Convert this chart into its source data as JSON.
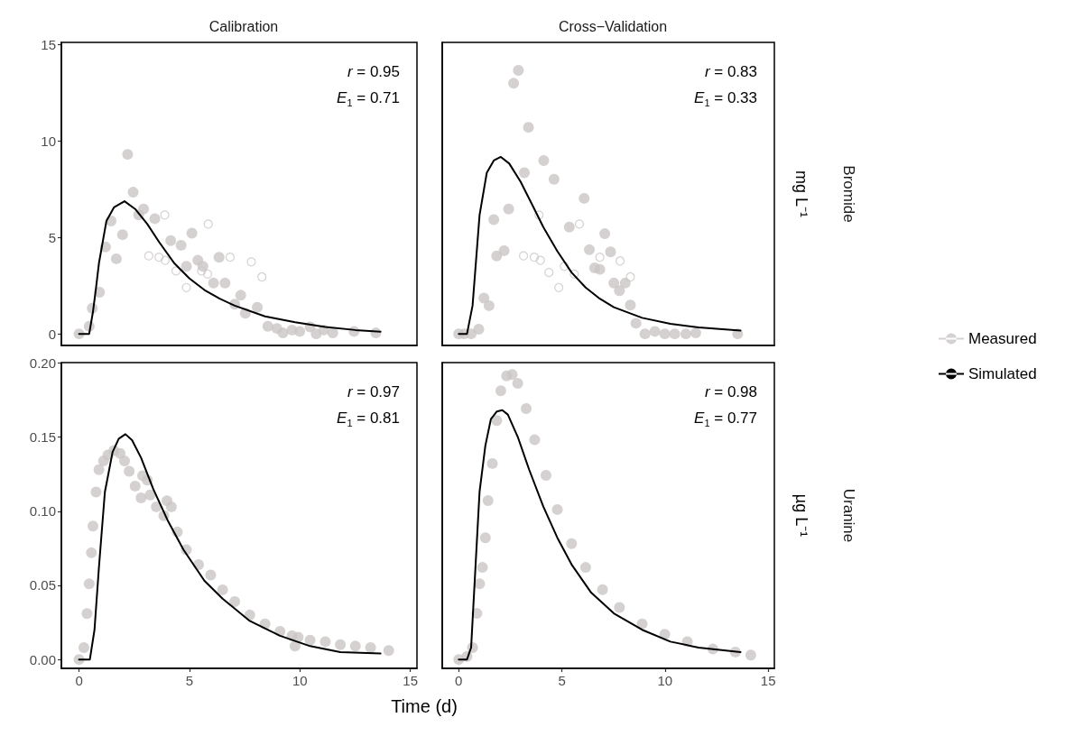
{
  "chart_data": [
    {
      "type": "scatter",
      "title": "Calibration",
      "xlim": [
        -0.8,
        15.3
      ],
      "ylim": [
        -0.6,
        15.1
      ],
      "xticks": [
        0,
        5,
        10,
        15
      ],
      "yticks": [
        0,
        5,
        10,
        15
      ],
      "tick_labels": "y",
      "grid": false,
      "legend": false,
      "line_style": "solid",
      "annotations": [
        "r = 0.95",
        "E$_{1}$ = 0.71"
      ],
      "series": [
        {
          "marker": "circle",
          "color": "#cbc6c5",
          "x": [
            0,
            0.46,
            0.6,
            0.93,
            1.2,
            1.45,
            1.69,
            1.97,
            2.2,
            2.45,
            2.7,
            2.92,
            3.43,
            4.15,
            4.62,
            4.86,
            5.11,
            5.38,
            5.61,
            6.09,
            6.34,
            6.61,
            7.05,
            7.32,
            7.53,
            8.07,
            8.55,
            8.96,
            9.23,
            9.64,
            9.99,
            10.46,
            10.74,
            11.08,
            11.49,
            12.45,
            13.44
          ],
          "values": [
            0,
            0.39,
            1.33,
            2.16,
            4.5,
            5.85,
            3.89,
            5.14,
            9.3,
            7.34,
            6.16,
            6.47,
            5.97,
            4.83,
            4.59,
            3.5,
            5.22,
            3.81,
            3.5,
            2.63,
            3.97,
            2.63,
            1.54,
            2.0,
            1.07,
            1.38,
            0.39,
            0.28,
            0.05,
            0.2,
            0.13,
            0.36,
            0,
            0.2,
            0.05,
            0.13,
            0.05
          ]
        },
        {
          "type": "scatter",
          "marker": "circle",
          "color": "#cbc6c5",
          "x": [
            3.16,
            3.62,
            3.88,
            3.9,
            4.39,
            4.86,
            5.55,
            5.82,
            5.85,
            6.84,
            7.8,
            8.28
          ],
          "values": [
            4.04,
            3.97,
            6.16,
            3.81,
            3.26,
            2.4,
            3.26,
            3.1,
            5.69,
            3.97,
            3.73,
            2.95
          ]
        },
        {
          "type": "line",
          "marker": "none",
          "color": "#000000",
          "x": [
            0,
            0.46,
            0.63,
            0.77,
            0.9,
            1.24,
            1.58,
            2.06,
            2.54,
            3.09,
            3.63,
            4.32,
            5.0,
            5.68,
            6.37,
            7.05,
            8.42,
            9.78,
            11.15,
            12.51,
            13.65
          ],
          "values": [
            0,
            0,
            1.14,
            2.4,
            3.65,
            5.85,
            6.55,
            6.87,
            6.47,
            5.69,
            4.75,
            3.65,
            2.87,
            2.27,
            1.82,
            1.46,
            0.91,
            0.6,
            0.36,
            0.2,
            0.11
          ]
        }
      ]
    },
    {
      "type": "scatter",
      "title": "Cross−Validation",
      "ylabel": "mg L⁻¹",
      "y2label": "Bromide",
      "xlim": [
        -0.8,
        15.3
      ],
      "ylim": [
        -0.6,
        15.1
      ],
      "xticks": [
        0,
        5,
        10,
        15
      ],
      "yticks": [
        0,
        5,
        10,
        15
      ],
      "tick_labels": false,
      "grid": false,
      "legend": "right",
      "line_style": "solid",
      "annotations": [
        "r = 0.83",
        "E$_{1}$ = 0.33"
      ],
      "series": [
        {
          "name": "Measured",
          "marker": "circle",
          "color": "#cbc6c5",
          "x": [
            0,
            0.26,
            0.6,
            0.97,
            1.22,
            1.47,
            1.7,
            1.84,
            2.2,
            2.42,
            2.66,
            2.89,
            3.18,
            3.38,
            4.12,
            4.62,
            5.36,
            6.08,
            6.33,
            6.59,
            6.84,
            7.08,
            7.36,
            7.52,
            7.79,
            8.07,
            8.32,
            8.59,
            9.03,
            9.51,
            9.99,
            10.47,
            11.01,
            11.49,
            13.52
          ],
          "values": [
            0,
            0,
            0,
            0.24,
            1.85,
            1.46,
            5.92,
            4.04,
            4.31,
            6.47,
            12.98,
            13.65,
            8.35,
            10.7,
            8.98,
            8.01,
            5.53,
            7.02,
            4.36,
            3.42,
            3.34,
            5.19,
            4.25,
            2.63,
            2.24,
            2.63,
            1.49,
            0.55,
            0,
            0.13,
            0,
            0,
            0,
            0.05,
            0
          ]
        },
        {
          "type": "scatter",
          "marker": "circle",
          "color": "#cbc6c5",
          "x": [
            3.89,
            3.14,
            3.66,
            3.96,
            4.37,
            4.85,
            5.12,
            5.6,
            5.85,
            6.84,
            7.82,
            8.32
          ],
          "values": [
            6.16,
            4.04,
            3.97,
            3.81,
            3.18,
            2.4,
            3.5,
            3.1,
            5.69,
            3.97,
            3.78,
            2.95
          ]
        },
        {
          "name": "Simulated",
          "type": "line",
          "marker": "none",
          "color": "#000000",
          "x": [
            0,
            0.4,
            0.67,
            1.01,
            1.36,
            1.7,
            2.04,
            2.45,
            3.0,
            3.55,
            4.1,
            4.78,
            5.47,
            6.15,
            6.84,
            7.52,
            8.89,
            10.26,
            11.63,
            13.66
          ],
          "values": [
            0,
            0,
            1.46,
            6.16,
            8.35,
            8.98,
            9.17,
            8.82,
            7.88,
            6.71,
            5.53,
            4.28,
            3.18,
            2.4,
            1.82,
            1.38,
            0.83,
            0.52,
            0.33,
            0.17
          ]
        }
      ]
    },
    {
      "type": "scatter",
      "xlabel": "Time (d)",
      "xlim": [
        -0.8,
        15.3
      ],
      "ylim": [
        -0.006,
        0.2
      ],
      "xticks": [
        0,
        5,
        10,
        15
      ],
      "yticks": [
        {
          "value": 0,
          "label": "0.00"
        },
        0.05,
        {
          "value": 0.1,
          "label": "0.10"
        },
        0.15,
        {
          "value": 0.2,
          "label": "0.20"
        }
      ],
      "grid": false,
      "legend": false,
      "line_style": "solid",
      "annotations": [
        "r = 0.97",
        "E$_{1}$ = 0.81"
      ],
      "series": [
        {
          "marker": "circle",
          "color": "#cbc6c5",
          "x": [
            0,
            0.22,
            0.36,
            0.46,
            0.56,
            0.63,
            0.77,
            0.9,
            1.11,
            1.31,
            1.58,
            1.86,
            2.06,
            2.27,
            2.54,
            2.81,
            2.88,
            3.09,
            3.22,
            3.5,
            3.84,
            3.98,
            4.18,
            4.45,
            4.86,
            5.41,
            5.96,
            6.5,
            7.05,
            7.73,
            8.42,
            9.1,
            9.64,
            9.78,
            9.92,
            10.46,
            11.15,
            11.83,
            12.51,
            13.2,
            14.02
          ],
          "values": [
            0,
            0.008,
            0.031,
            0.051,
            0.072,
            0.09,
            0.113,
            0.128,
            0.134,
            0.138,
            0.141,
            0.139,
            0.134,
            0.127,
            0.117,
            0.109,
            0.124,
            0.121,
            0.111,
            0.103,
            0.097,
            0.107,
            0.103,
            0.086,
            0.074,
            0.064,
            0.057,
            0.047,
            0.039,
            0.03,
            0.024,
            0.019,
            0.016,
            0.009,
            0.015,
            0.013,
            0.012,
            0.01,
            0.009,
            0.008,
            0.006
          ]
        },
        {
          "type": "line",
          "marker": "none",
          "color": "#000000",
          "x": [
            0,
            0.49,
            0.7,
            0.9,
            1.17,
            1.52,
            1.8,
            2.1,
            2.4,
            2.81,
            3.36,
            4.04,
            4.73,
            5.68,
            6.5,
            7.73,
            9.1,
            10.46,
            11.83,
            13.65
          ],
          "values": [
            0,
            0,
            0.02,
            0.062,
            0.113,
            0.14,
            0.149,
            0.152,
            0.148,
            0.136,
            0.115,
            0.093,
            0.074,
            0.053,
            0.041,
            0.026,
            0.016,
            0.009,
            0.005,
            0.004
          ]
        }
      ]
    },
    {
      "type": "scatter",
      "ylabel": "µg L⁻¹",
      "y2label": "Uranine",
      "xlim": [
        -0.8,
        15.3
      ],
      "ylim": [
        -0.006,
        0.2
      ],
      "xticks": [
        0,
        5,
        10,
        15
      ],
      "yticks": [
        0,
        0.05,
        0.1,
        0.15,
        0.2
      ],
      "tick_labels": "x",
      "grid": false,
      "legend": false,
      "line_style": "solid",
      "annotations": [
        "r = 0.98",
        "E$_{1}$ = 0.77"
      ],
      "series": [
        {
          "marker": "circle",
          "color": "#cbc6c5",
          "x": [
            0,
            0.4,
            0.67,
            0.88,
            1.01,
            1.15,
            1.29,
            1.42,
            1.63,
            1.84,
            2.04,
            2.32,
            2.59,
            2.86,
            3.27,
            3.68,
            4.23,
            4.78,
            5.47,
            6.15,
            6.97,
            7.79,
            8.89,
            9.99,
            11.08,
            12.32,
            13.41,
            14.16
          ],
          "values": [
            0,
            0.002,
            0.008,
            0.031,
            0.051,
            0.062,
            0.082,
            0.107,
            0.132,
            0.161,
            0.181,
            0.191,
            0.192,
            0.186,
            0.169,
            0.148,
            0.124,
            0.101,
            0.078,
            0.062,
            0.047,
            0.035,
            0.024,
            0.017,
            0.012,
            0.007,
            0.005,
            0.003
          ]
        },
        {
          "type": "line",
          "marker": "none",
          "color": "#000000",
          "x": [
            0,
            0.4,
            0.6,
            0.81,
            1.01,
            1.29,
            1.56,
            1.84,
            2.11,
            2.38,
            2.86,
            3.41,
            4.1,
            4.78,
            5.47,
            6.42,
            7.52,
            8.89,
            10.26,
            11.63,
            13.66
          ],
          "values": [
            0,
            0,
            0.008,
            0.062,
            0.113,
            0.144,
            0.162,
            0.167,
            0.168,
            0.165,
            0.15,
            0.128,
            0.103,
            0.082,
            0.064,
            0.045,
            0.031,
            0.02,
            0.012,
            0.008,
            0.005
          ]
        }
      ]
    }
  ]
}
